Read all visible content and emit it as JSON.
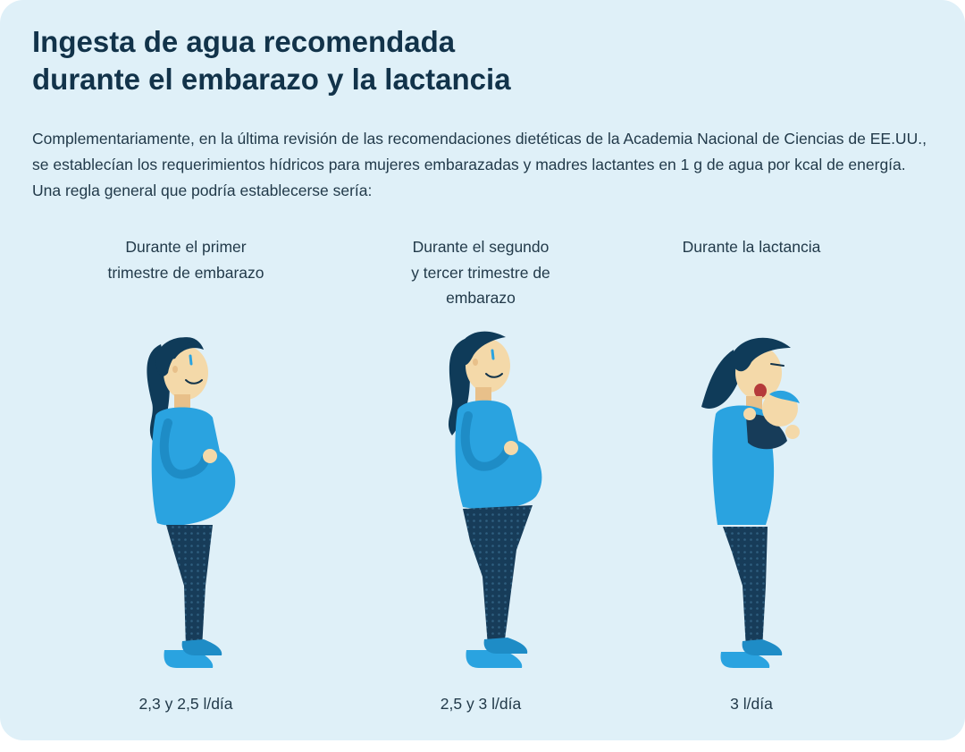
{
  "header": {
    "title_line1": "Ingesta de agua recomendada",
    "title_line2": "durante el embarazo y la lactancia"
  },
  "intro_text": "Complementariamente, en la última revisión de las recomendaciones dietéticas de la Academia Nacional de Ciencias de EE.UU., se establecían los requerimientos hídricos para mujeres embarazadas y madres lactantes en 1 g de agua por kcal de energía. Una regla general que podría establecerse sería:",
  "stages": [
    {
      "label_lines": [
        "Durante el primer",
        "trimestre de embarazo"
      ],
      "intake": "2,3 y 2,5 l/día",
      "illustration": "pregnant-woman-first-trimester-illustration"
    },
    {
      "label_lines": [
        "Durante el segundo",
        "y tercer trimestre de",
        "embarazo"
      ],
      "intake": "2,5 y 3 l/día",
      "illustration": "pregnant-woman-late-trimester-illustration"
    },
    {
      "label_lines": [
        "Durante la lactancia"
      ],
      "intake": "3 l/día",
      "illustration": "mother-holding-baby-illustration"
    }
  ],
  "colors": {
    "background": "#dff0f8",
    "title": "#12334a",
    "text": "#223a4a",
    "shirt": "#2aa3e0",
    "hair": "#0f3b59",
    "skin": "#f4d9a9",
    "leggings": "#173c59",
    "shoes": "#2aa3e0"
  }
}
